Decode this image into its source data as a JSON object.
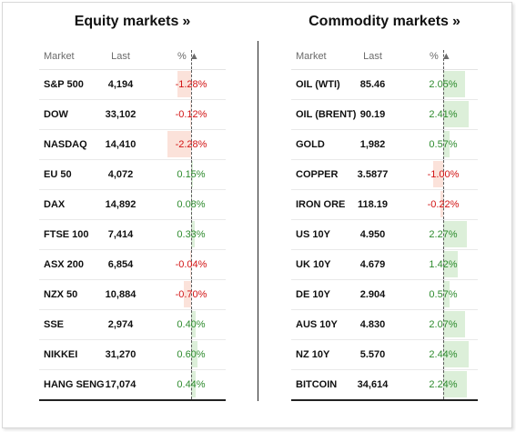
{
  "equity": {
    "title": "Equity markets",
    "chevron": "»",
    "headers": {
      "market": "Market",
      "last": "Last",
      "pct": "% ▲"
    },
    "rows": [
      {
        "name": "S&P 500",
        "last": "4,194",
        "pct": "-1.28%",
        "value": -1.28
      },
      {
        "name": "DOW",
        "last": "33,102",
        "pct": "-0.12%",
        "value": -0.12
      },
      {
        "name": "NASDAQ",
        "last": "14,410",
        "pct": "-2.28%",
        "value": -2.28
      },
      {
        "name": "EU 50",
        "last": "4,072",
        "pct": "0.15%",
        "value": 0.15
      },
      {
        "name": "DAX",
        "last": "14,892",
        "pct": "0.08%",
        "value": 0.08
      },
      {
        "name": "FTSE 100",
        "last": "7,414",
        "pct": "0.33%",
        "value": 0.33
      },
      {
        "name": "ASX 200",
        "last": "6,854",
        "pct": "-0.04%",
        "value": -0.04
      },
      {
        "name": "NZX 50",
        "last": "10,884",
        "pct": "-0.70%",
        "value": -0.7
      },
      {
        "name": "SSE",
        "last": "2,974",
        "pct": "0.40%",
        "value": 0.4
      },
      {
        "name": "NIKKEI",
        "last": "31,270",
        "pct": "0.60%",
        "value": 0.6
      },
      {
        "name": "HANG SENG",
        "last": "17,074",
        "pct": "0.44%",
        "value": 0.44
      }
    ]
  },
  "commodity": {
    "title": "Commodity markets",
    "chevron": "»",
    "headers": {
      "market": "Market",
      "last": "Last",
      "pct": "% ▲"
    },
    "rows": [
      {
        "name": "OIL (WTI)",
        "last": "85.46",
        "pct": "2.05%",
        "value": 2.05
      },
      {
        "name": "OIL (BRENT)",
        "last": "90.19",
        "pct": "2.41%",
        "value": 2.41
      },
      {
        "name": "GOLD",
        "last": "1,982",
        "pct": "0.57%",
        "value": 0.57
      },
      {
        "name": "COPPER",
        "last": "3.5877",
        "pct": "-1.00%",
        "value": -1.0
      },
      {
        "name": "IRON ORE",
        "last": "118.19",
        "pct": "-0.22%",
        "value": -0.22
      },
      {
        "name": "US 10Y",
        "last": "4.950",
        "pct": "2.27%",
        "value": 2.27
      },
      {
        "name": "UK 10Y",
        "last": "4.679",
        "pct": "1.42%",
        "value": 1.42
      },
      {
        "name": "DE 10Y",
        "last": "2.904",
        "pct": "0.57%",
        "value": 0.57
      },
      {
        "name": "AUS 10Y",
        "last": "4.830",
        "pct": "2.07%",
        "value": 2.07
      },
      {
        "name": "NZ 10Y",
        "last": "5.570",
        "pct": "2.44%",
        "value": 2.44
      },
      {
        "name": "BITCOIN",
        "last": "34,614",
        "pct": "2.24%",
        "value": 2.24
      }
    ]
  },
  "colors": {
    "positive_text": "#2e8b2e",
    "negative_text": "#d21414",
    "positive_bar": "#dcefd9",
    "negative_bar": "#fbe2da"
  }
}
